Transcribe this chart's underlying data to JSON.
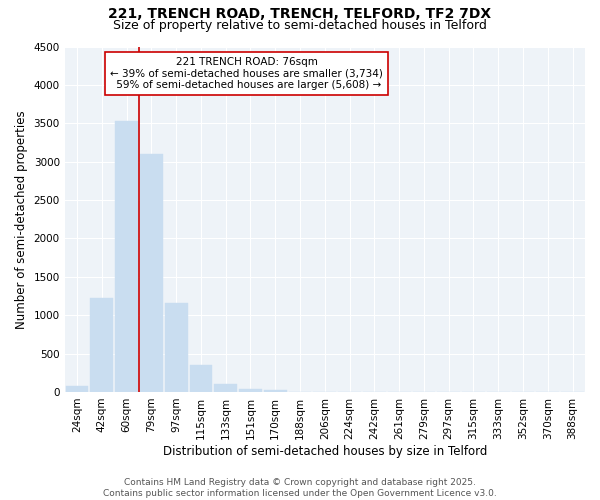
{
  "title1": "221, TRENCH ROAD, TRENCH, TELFORD, TF2 7DX",
  "title2": "Size of property relative to semi-detached houses in Telford",
  "xlabel": "Distribution of semi-detached houses by size in Telford",
  "ylabel": "Number of semi-detached properties",
  "categories": [
    "24sqm",
    "42sqm",
    "60sqm",
    "79sqm",
    "97sqm",
    "115sqm",
    "133sqm",
    "151sqm",
    "170sqm",
    "188sqm",
    "206sqm",
    "224sqm",
    "242sqm",
    "261sqm",
    "279sqm",
    "297sqm",
    "315sqm",
    "333sqm",
    "352sqm",
    "370sqm",
    "388sqm"
  ],
  "values": [
    80,
    1220,
    3530,
    3100,
    1160,
    350,
    110,
    45,
    25,
    0,
    0,
    0,
    0,
    0,
    0,
    0,
    0,
    0,
    0,
    0,
    0
  ],
  "bar_color": "#c9ddf0",
  "bar_edge_color": "#c9ddf0",
  "vline_x_index": 3,
  "vline_color": "#cc0000",
  "annotation_text": "221 TRENCH ROAD: 76sqm\n← 39% of semi-detached houses are smaller (3,734)\n 59% of semi-detached houses are larger (5,608) →",
  "annotation_box_color": "#ffffff",
  "annotation_box_edge": "#cc0000",
  "ylim": [
    0,
    4500
  ],
  "yticks": [
    0,
    500,
    1000,
    1500,
    2000,
    2500,
    3000,
    3500,
    4000,
    4500
  ],
  "footer1": "Contains HM Land Registry data © Crown copyright and database right 2025.",
  "footer2": "Contains public sector information licensed under the Open Government Licence v3.0.",
  "background_color": "#ffffff",
  "plot_bg_color": "#eef3f8",
  "grid_color": "#ffffff",
  "title_fontsize": 10,
  "subtitle_fontsize": 9,
  "axis_label_fontsize": 8.5,
  "tick_fontsize": 7.5,
  "annotation_fontsize": 7.5,
  "footer_fontsize": 6.5
}
